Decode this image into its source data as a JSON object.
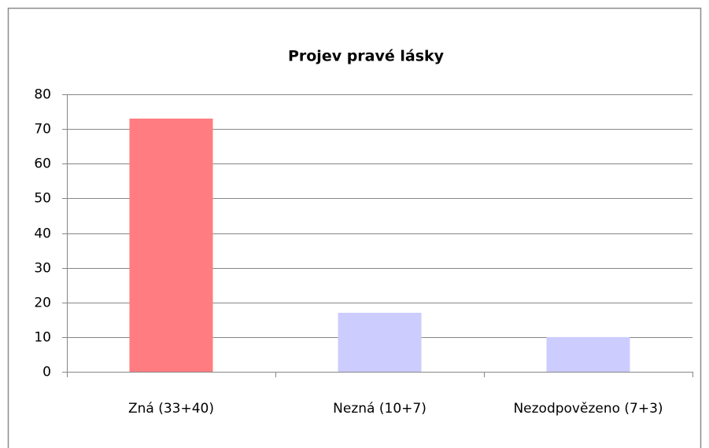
{
  "chart_data": {
    "type": "bar",
    "title": "Projev pravé lásky",
    "categories": [
      "Zná (33+40)",
      "Nezná (10+7)",
      "Nezodpovězeno (7+3)"
    ],
    "values": [
      73,
      17,
      10
    ],
    "colors": [
      "#ff7c80",
      "#ccccff",
      "#ccccff"
    ],
    "ylim": [
      0,
      80
    ],
    "yticks": [
      0,
      10,
      20,
      30,
      40,
      50,
      60,
      70,
      80
    ],
    "grid": true
  }
}
